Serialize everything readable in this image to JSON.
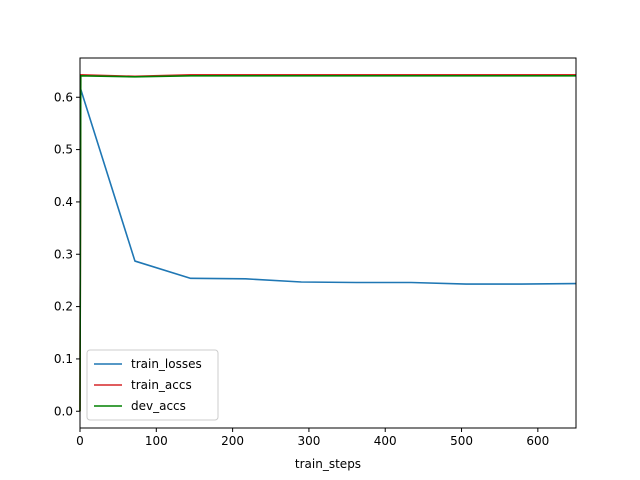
{
  "chart_data": {
    "type": "line",
    "title": "",
    "xlabel": "train_steps",
    "ylabel": "",
    "xlim": [
      0,
      650
    ],
    "ylim": [
      -0.032,
      0.675
    ],
    "xticks": [
      0,
      100,
      200,
      300,
      400,
      500,
      600
    ],
    "yticks": [
      0.0,
      0.1,
      0.2,
      0.3,
      0.4,
      0.5,
      0.6
    ],
    "xtick_labels": [
      "0",
      "100",
      "200",
      "300",
      "400",
      "500",
      "600"
    ],
    "ytick_labels": [
      "0.0",
      "0.1",
      "0.2",
      "0.3",
      "0.4",
      "0.5",
      "0.6"
    ],
    "grid": false,
    "legend_position": "lower-left",
    "series": [
      {
        "name": "train_losses",
        "color": "#1f77b4",
        "x": [
          0,
          1,
          72,
          145,
          217,
          290,
          362,
          434,
          506,
          578,
          650
        ],
        "y": [
          0.615,
          0.615,
          0.287,
          0.254,
          0.253,
          0.247,
          0.246,
          0.246,
          0.243,
          0.243,
          0.244
        ]
      },
      {
        "name": "train_accs",
        "color": "#d62728",
        "x": [
          0,
          1,
          72,
          145,
          217,
          290,
          362,
          434,
          506,
          578,
          650
        ],
        "y": [
          0.0,
          0.643,
          0.64,
          0.643,
          0.643,
          0.643,
          0.643,
          0.643,
          0.643,
          0.643,
          0.643
        ]
      },
      {
        "name": "dev_accs",
        "color": "#008000",
        "x": [
          0,
          1,
          72,
          145,
          217,
          290,
          362,
          434,
          506,
          578,
          650
        ],
        "y": [
          0.0,
          0.641,
          0.639,
          0.641,
          0.641,
          0.641,
          0.641,
          0.641,
          0.641,
          0.641,
          0.641
        ]
      }
    ]
  }
}
